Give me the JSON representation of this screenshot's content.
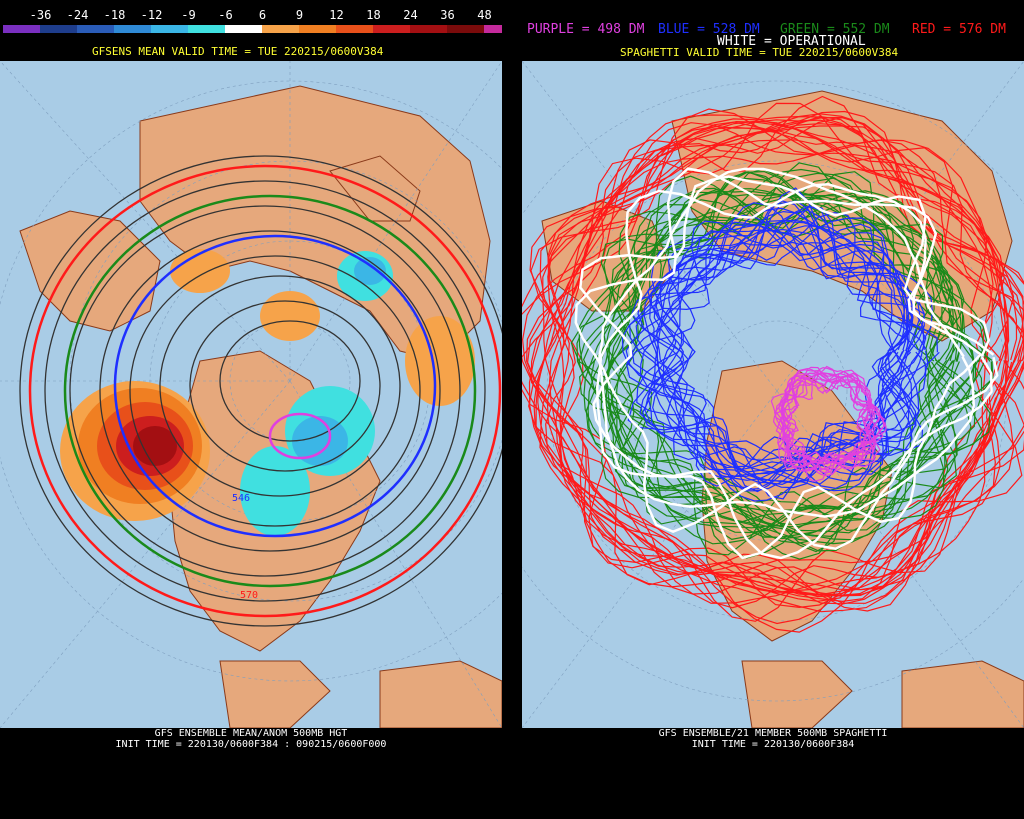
{
  "left_panel": {
    "colorbar": {
      "ticks": [
        "-36",
        "-24",
        "-18",
        "-12",
        "-9",
        "-6",
        "6",
        "9",
        "12",
        "18",
        "24",
        "36",
        "48"
      ],
      "colors": [
        "#7a2fc0",
        "#1e3d8c",
        "#2a5cb8",
        "#2f8ad6",
        "#3bb6e6",
        "#40e0e0",
        "#ffffff",
        "#f6a34a",
        "#f07f22",
        "#e8501a",
        "#cc1e1e",
        "#a30f12",
        "#7a0b0b",
        "#c42a9c"
      ]
    },
    "title": "GFSENS MEAN VALID TIME = TUE 220215/0600V384",
    "footer_line1": "GFS ENSEMBLE MEAN/ANOM 500MB HGT",
    "footer_line2": "INIT TIME = 220130/0600F384 : 090215/0600F000",
    "contour_labels": [
      "546",
      "570"
    ]
  },
  "right_panel": {
    "legend": {
      "purple": "PURPLE = 498 DM",
      "blue": "BLUE = 528 DM",
      "green": "GREEN = 552 DM",
      "red": "RED = 576 DM",
      "white": "WHITE = OPERATIONAL"
    },
    "title": "SPAGHETTI VALID TIME = TUE 220215/0600V384",
    "footer_line1": "GFS ENSEMBLE/21 MEMBER 500MB SPAGHETTI",
    "footer_line2": "INIT TIME = 220130/0600F384"
  },
  "colors": {
    "ocean": "#a9cce6",
    "land": "#e6a87c",
    "border": "#8a3a1a",
    "purple": "#e040e0",
    "blue": "#1f2fff",
    "green": "#1a8a1a",
    "red": "#ff1a1a",
    "white": "#ffffff"
  }
}
